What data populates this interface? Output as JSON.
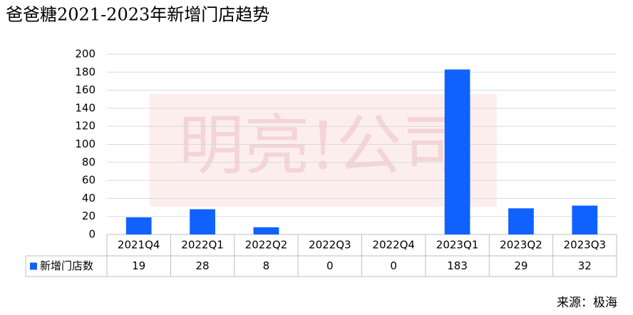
{
  "chart_data": {
    "type": "bar",
    "title": "爸爸糖2021-2023年新增门店趋势",
    "categories": [
      "2021Q4",
      "2022Q1",
      "2022Q2",
      "2022Q3",
      "2022Q4",
      "2023Q1",
      "2023Q2",
      "2023Q3"
    ],
    "series": [
      {
        "name": "新增门店数",
        "color": "#0f62fe",
        "values": [
          19,
          28,
          8,
          0,
          0,
          183,
          29,
          32
        ]
      }
    ],
    "ylim": [
      0,
      200
    ],
    "yticks": [
      0,
      20,
      40,
      60,
      80,
      100,
      120,
      140,
      160,
      180,
      200
    ],
    "grid": true,
    "watermark": "明亮!公司",
    "source": "来源：极海"
  }
}
